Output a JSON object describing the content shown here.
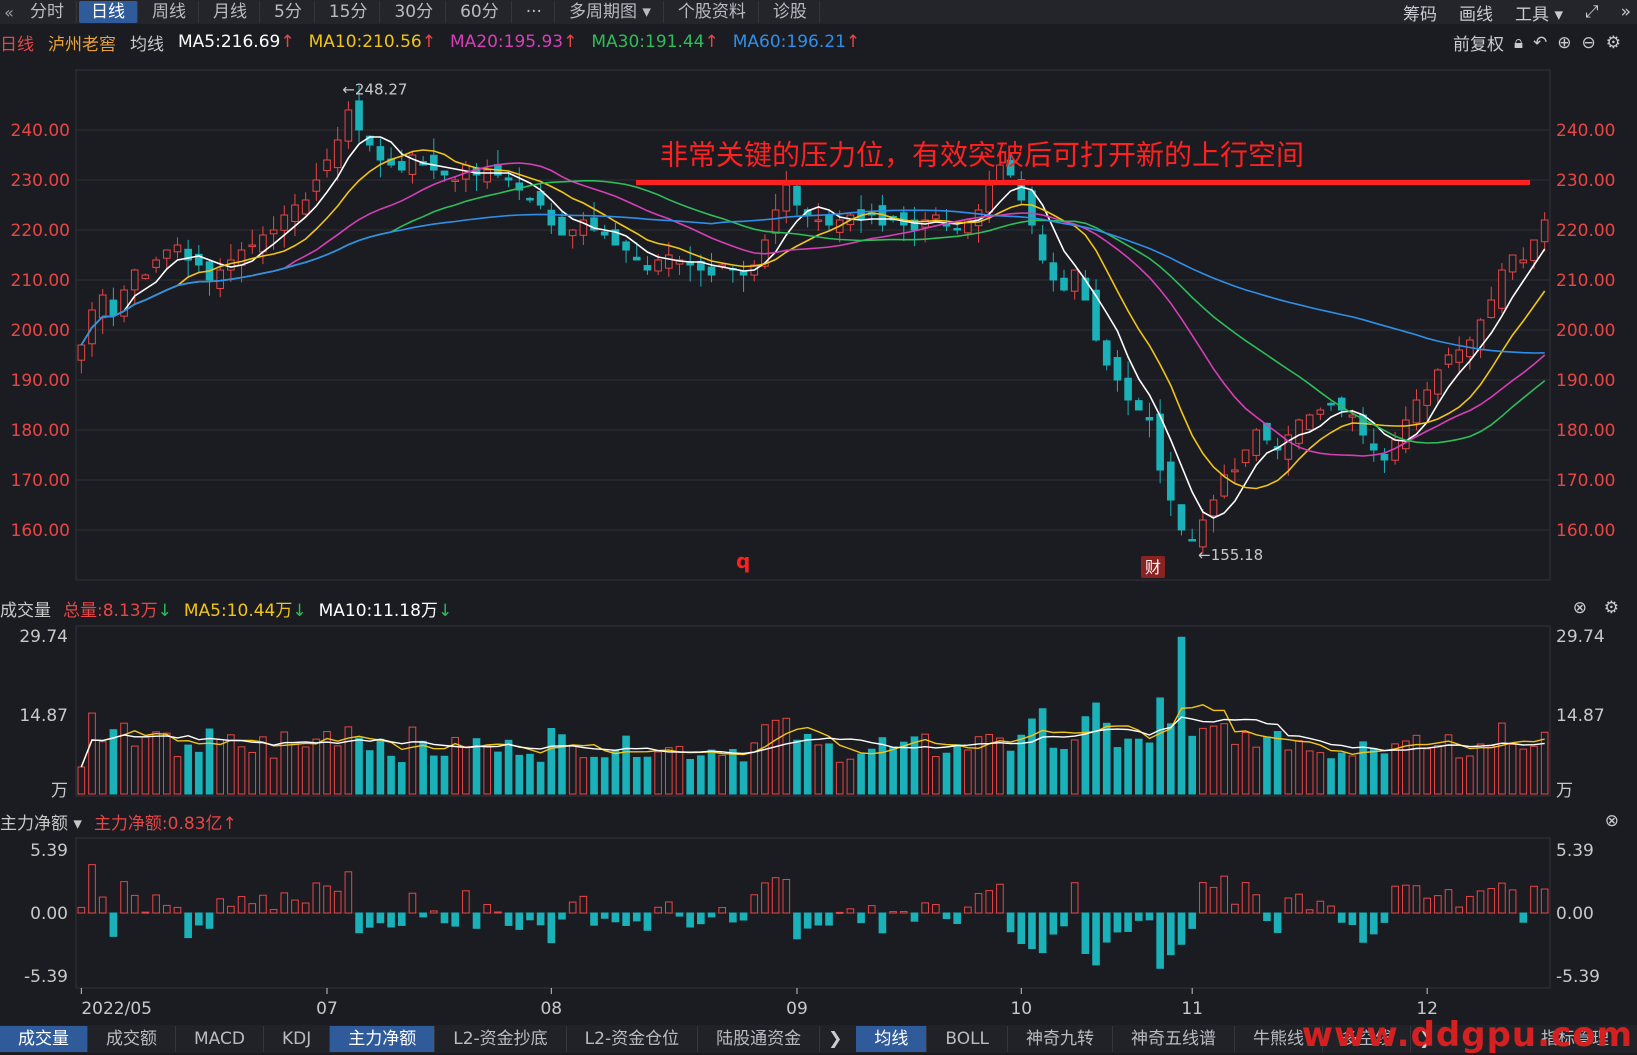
{
  "topbar": {
    "tabs": [
      "分时",
      "日线",
      "周线",
      "月线",
      "5分",
      "15分",
      "30分",
      "60分",
      "···",
      "多周期图 ▾",
      "个股资料",
      "诊股"
    ],
    "active_tab": "日线",
    "right_items": [
      "筹码",
      "画线",
      "工具 ▾"
    ]
  },
  "infobar": {
    "period": "日线",
    "stock_name": "泸州老窖",
    "ma_label": "均线",
    "ma5": "MA5:216.69",
    "ma10": "MA10:210.56",
    "ma20": "MA20:195.93",
    "ma30": "MA30:191.44",
    "ma60": "MA60:196.21",
    "adjust": "前复权"
  },
  "colors": {
    "up": "#e84545",
    "down": "#1bb1b9",
    "ma5": "#ffffff",
    "ma10": "#f0c419",
    "ma20": "#d63fb8",
    "ma30": "#2dbd5a",
    "ma60": "#2f8fe8",
    "annotation": "#ff2020"
  },
  "annotation": {
    "text": "非常关键的压力位，有效突破后可打开新的上行空间",
    "high_label": "←248.27",
    "low_label": "←155.18",
    "q_marker": "q",
    "cai_marker": "财"
  },
  "volume_panel": {
    "title": "成交量",
    "total": "总量:8.13万",
    "ma5": "MA5:10.44万",
    "ma10": "MA10:11.18万"
  },
  "flow_panel": {
    "title": "主力净额 ▾",
    "value": "主力净额:0.83亿"
  },
  "bottombar": {
    "left_tabs": [
      "成交量",
      "成交额",
      "MACD",
      "KDJ",
      "主力净额",
      "L2-资金抄底",
      "L2-资金仓位",
      "陆股通资金"
    ],
    "right_tabs": [
      "均线",
      "BOLL",
      "神奇九转",
      "神奇五线谱",
      "牛熊线",
      "多空线"
    ],
    "right_tail": "指标管理",
    "watermark": "www.ddgpu.com"
  },
  "chart_data": {
    "type": "candlestick",
    "price_axis": {
      "ticks": [
        240,
        230,
        220,
        210,
        200,
        190,
        180,
        170,
        160
      ],
      "tick_labels": [
        "240.00",
        "230.00",
        "220.00",
        "210.00",
        "200.00",
        "190.00",
        "180.00",
        "170.00",
        "160.00"
      ],
      "range": [
        150,
        252
      ]
    },
    "resistance_level": 229.5,
    "x_labels": [
      "2022/05",
      "07",
      "08",
      "09",
      "10",
      "11",
      "12"
    ],
    "x_label_index": [
      0,
      23,
      44,
      67,
      88,
      104,
      126
    ],
    "closes": [
      197,
      204,
      207,
      203,
      208,
      212,
      211,
      214,
      216,
      217,
      214,
      213,
      210,
      212,
      214,
      216,
      217,
      219,
      220,
      223,
      225,
      226,
      230,
      234,
      238,
      244,
      240,
      237,
      234,
      233,
      232,
      235,
      233,
      232,
      231,
      230,
      233,
      231,
      232,
      231,
      230,
      228,
      226,
      225,
      221,
      219,
      220,
      222,
      220,
      219,
      217,
      216,
      214,
      212,
      214,
      215,
      214,
      213,
      212,
      211,
      213,
      212,
      211,
      213,
      218,
      224,
      229,
      225,
      223,
      222,
      221,
      222,
      223,
      222,
      223,
      221,
      222,
      221,
      220,
      222,
      223,
      221,
      220,
      222,
      224,
      229,
      233,
      231,
      226,
      221,
      214,
      210,
      208,
      212,
      206,
      198,
      193,
      190,
      186,
      184,
      182,
      172,
      166,
      160,
      158,
      162,
      166,
      171,
      172,
      176,
      180,
      178,
      176,
      179,
      182,
      183,
      184,
      185,
      184,
      183,
      179,
      176,
      174,
      178,
      182,
      186,
      188,
      192,
      195,
      196,
      198,
      202,
      206,
      212,
      215,
      214,
      218,
      222
    ],
    "volume_axis": {
      "tick_labels": [
        "29.74",
        "14.87",
        "万"
      ],
      "max": 29.74
    },
    "flow_axis": {
      "tick_labels": [
        "5.39",
        "0.00",
        "-5.39"
      ],
      "range": [
        -5.39,
        5.39
      ]
    },
    "high_marker": 248.27,
    "low_marker": 155.18
  }
}
